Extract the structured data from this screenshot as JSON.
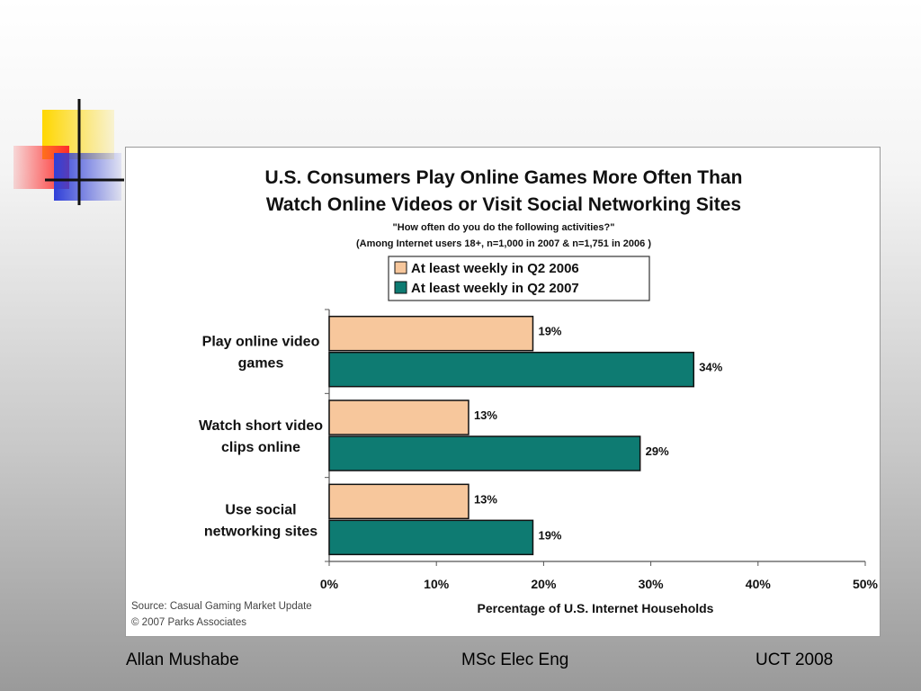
{
  "slide": {
    "footer_left": "Allan Mushabe",
    "footer_center": "MSc Elec Eng",
    "footer_right": "UCT 2008"
  },
  "colors": {
    "series_2006": "#f7c79c",
    "series_2007": "#0e7b72",
    "deco_yellow": "#ffd700",
    "deco_red": "#ff3030",
    "deco_blue": "#2f3fd8"
  },
  "chart_data": {
    "type": "bar",
    "orientation": "horizontal",
    "title_line1": "U.S. Consumers Play Online Games More Often Than",
    "title_line2": "Watch Online Videos or Visit Social Networking Sites",
    "subtitle_line1": "\"How often do you do the following activities?\"",
    "subtitle_line2": "(Among Internet users 18+, n=1,000 in 2007 & n=1,751 in 2006 )",
    "categories": [
      [
        "Play online video",
        "games"
      ],
      [
        "Watch short video",
        "clips online"
      ],
      [
        "Use social",
        "networking sites"
      ]
    ],
    "series": [
      {
        "name": "At least weekly in Q2 2006",
        "values": [
          19,
          13,
          13
        ],
        "labels": [
          "19%",
          "13%",
          "13%"
        ]
      },
      {
        "name": "At least weekly in Q2 2007",
        "values": [
          34,
          29,
          19
        ],
        "labels": [
          "34%",
          "29%",
          "19%"
        ]
      }
    ],
    "xlim": [
      0,
      50
    ],
    "xticks": [
      "0%",
      "10%",
      "20%",
      "30%",
      "40%",
      "50%"
    ],
    "xlabel": "Percentage of U.S. Internet  Households",
    "legend_placement": "top-center",
    "grid": false,
    "source_line1": "Source:  Casual Gaming Market Update",
    "source_line2": "© 2007 Parks Associates"
  }
}
